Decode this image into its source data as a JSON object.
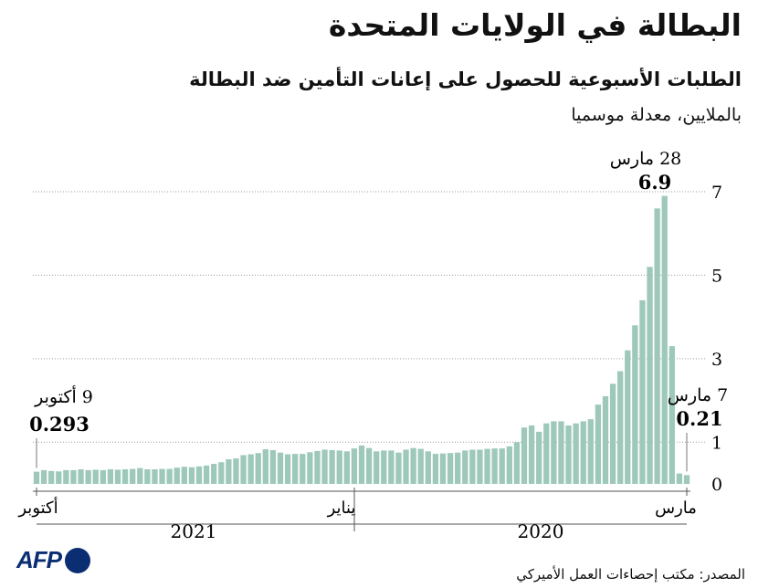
{
  "header": {
    "title": "البطالة في الولايات المتحدة",
    "subtitle": "الطلبات الأسبوعية للحصول على إعانات التأمين ضد البطالة",
    "units": "بالملايين، معدلة موسميا"
  },
  "annotations": {
    "peak_date": "28 مارس",
    "peak_value": "6.9",
    "first_date": "7 مارس",
    "first_value": "0.21",
    "last_date": "9 أكتوبر",
    "last_value": "0.293"
  },
  "x_axis": {
    "labels": {
      "march": "مارس",
      "january": "يناير",
      "october": "أكتوبر"
    },
    "years": {
      "y2020": "2020",
      "y2021": "2021"
    }
  },
  "footer": {
    "source": "المصدر: مكتب إحصاءات العمل الأميركي",
    "logo_text": "AFP"
  },
  "colors": {
    "bar": "#9ec9ba",
    "grid": "#9a9a9a",
    "logo": "#0b2e73"
  },
  "chart_data": {
    "type": "bar",
    "x_direction": "right-to-left (time runs from March 2020 at right to October 2021 at left)",
    "ylim": [
      0,
      7
    ],
    "yticks": [
      0,
      1,
      3,
      5,
      7
    ],
    "grid": true,
    "weeks_from_2020_03_07": [
      0.21,
      0.25,
      3.3,
      6.9,
      6.6,
      5.2,
      4.4,
      3.8,
      3.2,
      2.7,
      2.4,
      2.1,
      1.9,
      1.55,
      1.5,
      1.45,
      1.4,
      1.5,
      1.5,
      1.45,
      1.25,
      1.4,
      1.35,
      1.0,
      0.9,
      0.85,
      0.85,
      0.84,
      0.82,
      0.82,
      0.8,
      0.75,
      0.74,
      0.73,
      0.72,
      0.78,
      0.84,
      0.86,
      0.82,
      0.75,
      0.8,
      0.8,
      0.78,
      0.86,
      0.92,
      0.85,
      0.78,
      0.8,
      0.81,
      0.82,
      0.79,
      0.76,
      0.72,
      0.72,
      0.71,
      0.75,
      0.81,
      0.83,
      0.74,
      0.71,
      0.69,
      0.61,
      0.59,
      0.52,
      0.48,
      0.44,
      0.42,
      0.4,
      0.41,
      0.39,
      0.36,
      0.36,
      0.35,
      0.35,
      0.38,
      0.36,
      0.35,
      0.34,
      0.35,
      0.33,
      0.34,
      0.33,
      0.35,
      0.33,
      0.33,
      0.3,
      0.31,
      0.33,
      0.293
    ]
  }
}
